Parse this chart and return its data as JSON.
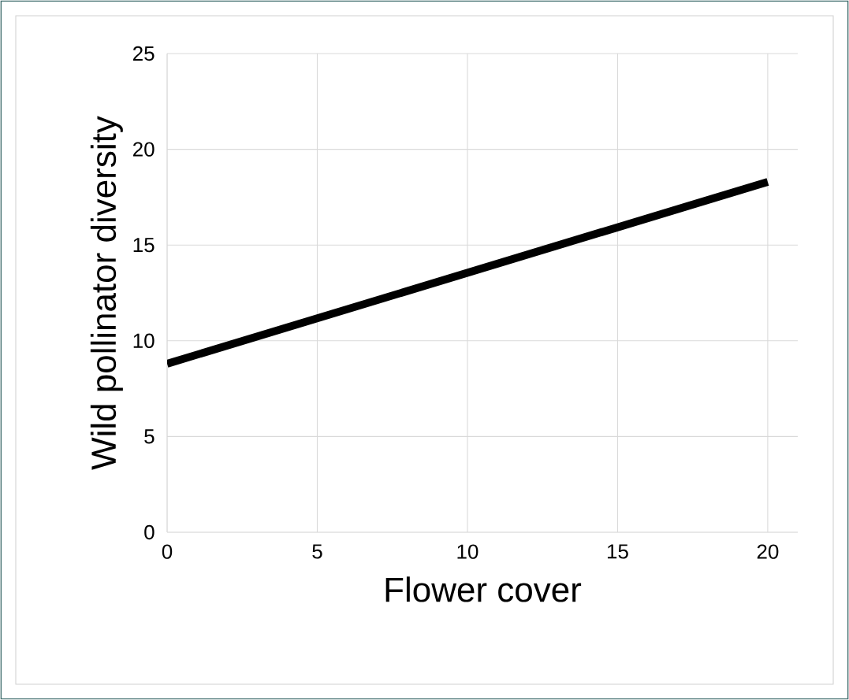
{
  "chart_data": {
    "type": "line",
    "xlabel": "Flower cover",
    "ylabel": "Wild pollinator diversity",
    "x": [
      0,
      20
    ],
    "series": [
      {
        "color": "#000000",
        "values": [
          8.8,
          18.3
        ]
      }
    ],
    "xlim": [
      0,
      21
    ],
    "ylim": [
      0,
      25
    ],
    "xticks": [
      0,
      5,
      10,
      15,
      20
    ],
    "yticks": [
      0,
      5,
      10,
      15,
      20,
      25
    ],
    "grid": true,
    "marker": "none",
    "line_style": "solid"
  }
}
